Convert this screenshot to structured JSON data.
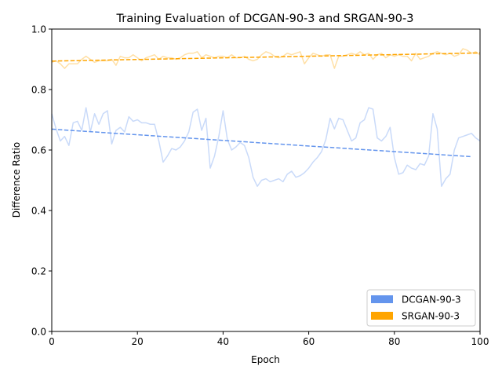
{
  "chart_data": {
    "type": "line",
    "title": "Training Evaluation of DCGAN-90-3 and SRGAN-90-3",
    "xlabel": "Epoch",
    "ylabel": "Difference Ratio",
    "xlim": [
      0,
      100
    ],
    "ylim": [
      0,
      1.0
    ],
    "xticks": [
      "0",
      "20",
      "40",
      "60",
      "80",
      "100"
    ],
    "yticks": [
      "0.0",
      "0.2",
      "0.4",
      "0.6",
      "0.8",
      "1.0"
    ],
    "grid": false,
    "legend_position": "lower-right",
    "series": [
      {
        "name": "DCGAN-90-3",
        "color": "#6495ED",
        "values": [
          0.72,
          0.67,
          0.63,
          0.645,
          0.615,
          0.69,
          0.695,
          0.665,
          0.74,
          0.66,
          0.72,
          0.685,
          0.72,
          0.73,
          0.62,
          0.665,
          0.675,
          0.66,
          0.71,
          0.695,
          0.7,
          0.69,
          0.69,
          0.685,
          0.685,
          0.63,
          0.56,
          0.58,
          0.605,
          0.6,
          0.61,
          0.63,
          0.66,
          0.725,
          0.735,
          0.665,
          0.705,
          0.54,
          0.58,
          0.645,
          0.73,
          0.635,
          0.6,
          0.61,
          0.625,
          0.615,
          0.575,
          0.51,
          0.48,
          0.5,
          0.505,
          0.495,
          0.5,
          0.505,
          0.495,
          0.52,
          0.53,
          0.51,
          0.515,
          0.525,
          0.54,
          0.56,
          0.575,
          0.595,
          0.635,
          0.705,
          0.67,
          0.705,
          0.7,
          0.665,
          0.63,
          0.64,
          0.69,
          0.7,
          0.74,
          0.735,
          0.64,
          0.63,
          0.645,
          0.675,
          0.575,
          0.52,
          0.525,
          0.55,
          0.54,
          0.535,
          0.555,
          0.55,
          0.58,
          0.72,
          0.67,
          0.48,
          0.505,
          0.52,
          0.6,
          0.64,
          0.645,
          0.65,
          0.655,
          0.64,
          0.63
        ],
        "trend": [
          0.669,
          0.578
        ],
        "trend_range": [
          0,
          98
        ]
      },
      {
        "name": "SRGAN-90-3",
        "color": "#FFA500",
        "values": [
          0.89,
          0.895,
          0.885,
          0.87,
          0.885,
          0.885,
          0.885,
          0.9,
          0.91,
          0.9,
          0.89,
          0.895,
          0.895,
          0.895,
          0.9,
          0.88,
          0.91,
          0.905,
          0.905,
          0.915,
          0.905,
          0.895,
          0.905,
          0.91,
          0.915,
          0.9,
          0.91,
          0.905,
          0.905,
          0.9,
          0.905,
          0.915,
          0.92,
          0.92,
          0.925,
          0.905,
          0.915,
          0.91,
          0.905,
          0.91,
          0.91,
          0.905,
          0.915,
          0.905,
          0.905,
          0.91,
          0.9,
          0.895,
          0.9,
          0.915,
          0.925,
          0.92,
          0.91,
          0.905,
          0.91,
          0.92,
          0.915,
          0.92,
          0.925,
          0.885,
          0.905,
          0.92,
          0.915,
          0.91,
          0.915,
          0.915,
          0.87,
          0.91,
          0.91,
          0.915,
          0.92,
          0.915,
          0.925,
          0.915,
          0.92,
          0.9,
          0.915,
          0.92,
          0.905,
          0.915,
          0.91,
          0.915,
          0.91,
          0.91,
          0.895,
          0.92,
          0.9,
          0.905,
          0.91,
          0.92,
          0.925,
          0.92,
          0.915,
          0.92,
          0.91,
          0.915,
          0.935,
          0.93,
          0.92,
          0.925,
          0.915
        ],
        "trend": [
          0.894,
          0.921
        ],
        "trend_range": [
          0,
          100
        ]
      }
    ]
  }
}
